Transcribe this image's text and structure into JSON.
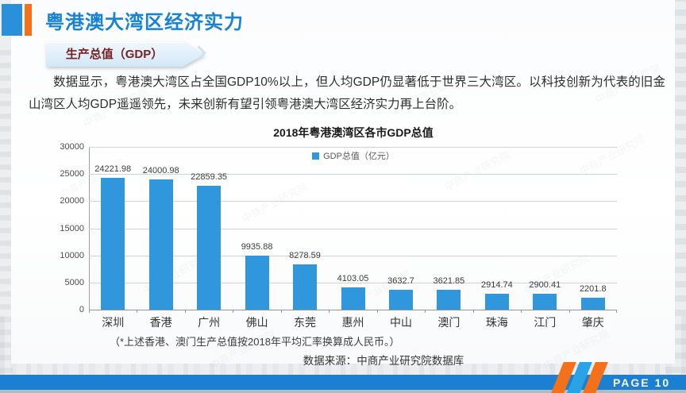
{
  "page": {
    "title": "粤港澳大湾区经济实力",
    "badge": "生产总值（GDP）",
    "paragraph": "数据显示，粤港澳大湾区占全国GDP10%以上，但人均GDP仍显著低于世界三大湾区。以科技创新为代表的旧金山湾区人均GDP遥遥领先，未来创新有望引领粤港澳大湾区经济实力再上台阶。",
    "footnote": "（*上述香港、澳门生产总值按2018年平均汇率换算成人民币。）",
    "source": "数据来源：中商产业研究院数据库",
    "watermark": "中商产业研究院",
    "footer": {
      "page_label": "PAGE",
      "page_number": "10"
    }
  },
  "colors": {
    "title_blue": "#1783d2",
    "accent_orange": "#f4711c",
    "bar_blue": "#3097dc",
    "footer_blue": "#1b7fd2",
    "stripe_light_blue": "#2aa3e6",
    "badge_bg": "#d3e7f7",
    "badge_text": "#7a2121"
  },
  "chart_data": {
    "type": "bar",
    "title": "2018年粤港澳湾区各市GDP总值",
    "legend": [
      "GDP总值（亿元）"
    ],
    "legend_position": "top-center",
    "categories": [
      "深圳",
      "香港",
      "广州",
      "佛山",
      "东莞",
      "惠州",
      "中山",
      "澳门",
      "珠海",
      "江门",
      "肇庆"
    ],
    "values": [
      24221.98,
      24000.98,
      22859.35,
      9935.88,
      8278.59,
      4103.05,
      3632.7,
      3621.85,
      2914.74,
      2900.41,
      2201.8
    ],
    "value_labels": [
      "24221.98",
      "24000.98",
      "22859.35",
      "9935.88",
      "8278.59",
      "4103.05",
      "3632.7",
      "3621.85",
      "2914.74",
      "2900.41",
      "2201.8"
    ],
    "xlabel": "",
    "ylabel": "",
    "ylim": [
      0,
      30000
    ],
    "yticks": [
      0,
      5000,
      10000,
      15000,
      20000,
      25000,
      30000
    ],
    "grid": true,
    "bar_color": "#3097dc"
  }
}
